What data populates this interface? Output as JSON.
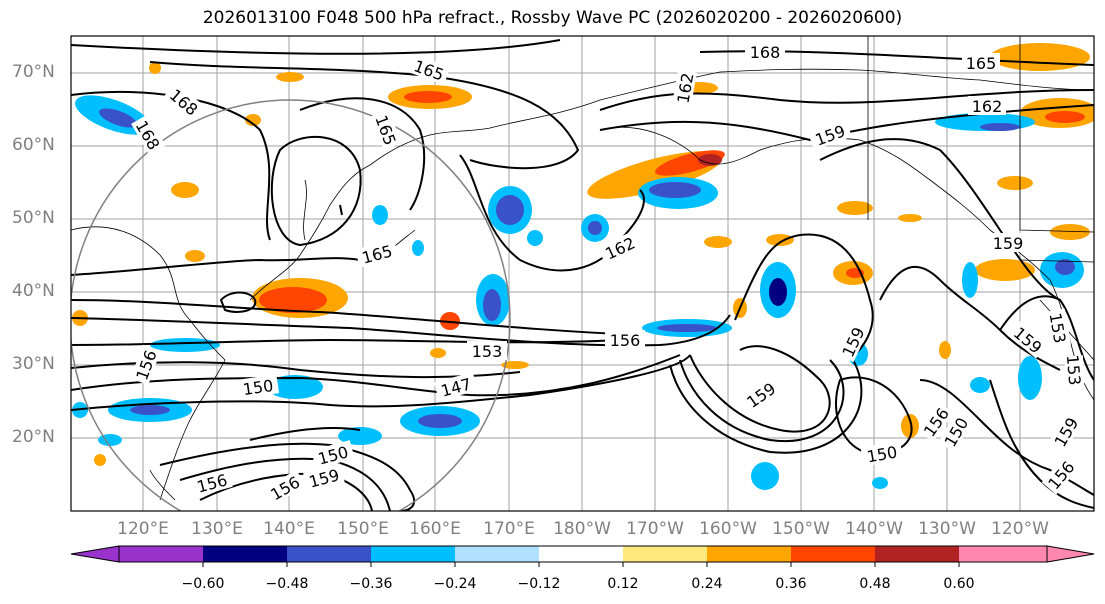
{
  "title": "2026013100 F048 500 hPa refract., Rossby Wave PC (2026020200 - 2026020600)",
  "lat_labels": [
    "70°N",
    "60°N",
    "50°N",
    "40°N",
    "30°N",
    "20°N"
  ],
  "lon_labels": [
    "120°E",
    "130°E",
    "140°E",
    "150°E",
    "160°E",
    "170°E",
    "180°W",
    "170°W",
    "160°W",
    "150°W",
    "140°W",
    "130°W",
    "120°W"
  ],
  "contour_labels": [
    "168",
    "165",
    "165",
    "168",
    "168",
    "165",
    "162",
    "162",
    "159",
    "159",
    "162",
    "165",
    "159",
    "156",
    "153",
    "153",
    "150",
    "147",
    "159",
    "156",
    "159",
    "150",
    "156",
    "150",
    "159",
    "156",
    "150",
    "156",
    "159",
    "156",
    "153"
  ],
  "colorbar": {
    "ticks": [
      "−0.60",
      "−0.48",
      "−0.36",
      "−0.24",
      "−0.12",
      "0.12",
      "0.24",
      "0.36",
      "0.48",
      "0.60"
    ],
    "colors": [
      "#9933cc",
      "#000080",
      "#3a52c8",
      "#00bfff",
      "#b0e0ff",
      "#ffffff",
      "#ffe87c",
      "#ffa500",
      "#ff4500",
      "#b22222",
      "#ff88b0"
    ]
  }
}
